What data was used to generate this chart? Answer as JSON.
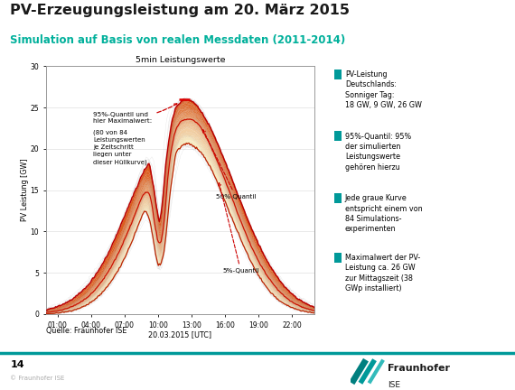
{
  "title1": "PV-Erzeugungsleistung am 20. März 2015",
  "title2": "Simulation auf Basis von realen Messdaten (2011-2014)",
  "chart_title": "5min Leistungswerte",
  "xlabel": "20.03.2015 [UTC]",
  "ylabel": "PV Leistung [GW]",
  "ylim": [
    0,
    30
  ],
  "yticks": [
    0,
    5,
    10,
    15,
    20,
    25,
    30
  ],
  "xtick_labels": [
    "01:00",
    "04:00",
    "07:00",
    "10:00",
    "13:00",
    "16:00",
    "19:00",
    "22:00"
  ],
  "footer_left": "Quelle: Fraunhofer ISE",
  "footer_num": "14",
  "footer_copy": "© Fraunhofer ISE",
  "legend_items": [
    "PV-Leistung\nDeutschlands:\nSonniger Tag:\n18 GW, 9 GW, 26 GW",
    "95%-Quantil: 95%\nder simulierten\nLeistungswerte\ngehören hierzu",
    "Jede graue Kurve\nentspricht einem von\n84 Simulations-\nexperimenten",
    "Maximalwert der PV-\nLeistung ca. 26 GW\nzur Mittagszeit (38\nGWp installiert)"
  ],
  "annotation1_text": "95%-Quantil und\nhier Maximalwert:",
  "annotation1b_text": "(80 von 84\nLeistungswerten\nje Zeitschritt\nliegen unter\ndieser Hüllkurve)",
  "annotation2_text": "50% Quantil",
  "annotation3_text": "5%-Quantil",
  "title1_color": "#1a1a1a",
  "title2_color": "#00b09b",
  "bullet_color": "#009999",
  "fraunhofer_teal": "#009999"
}
